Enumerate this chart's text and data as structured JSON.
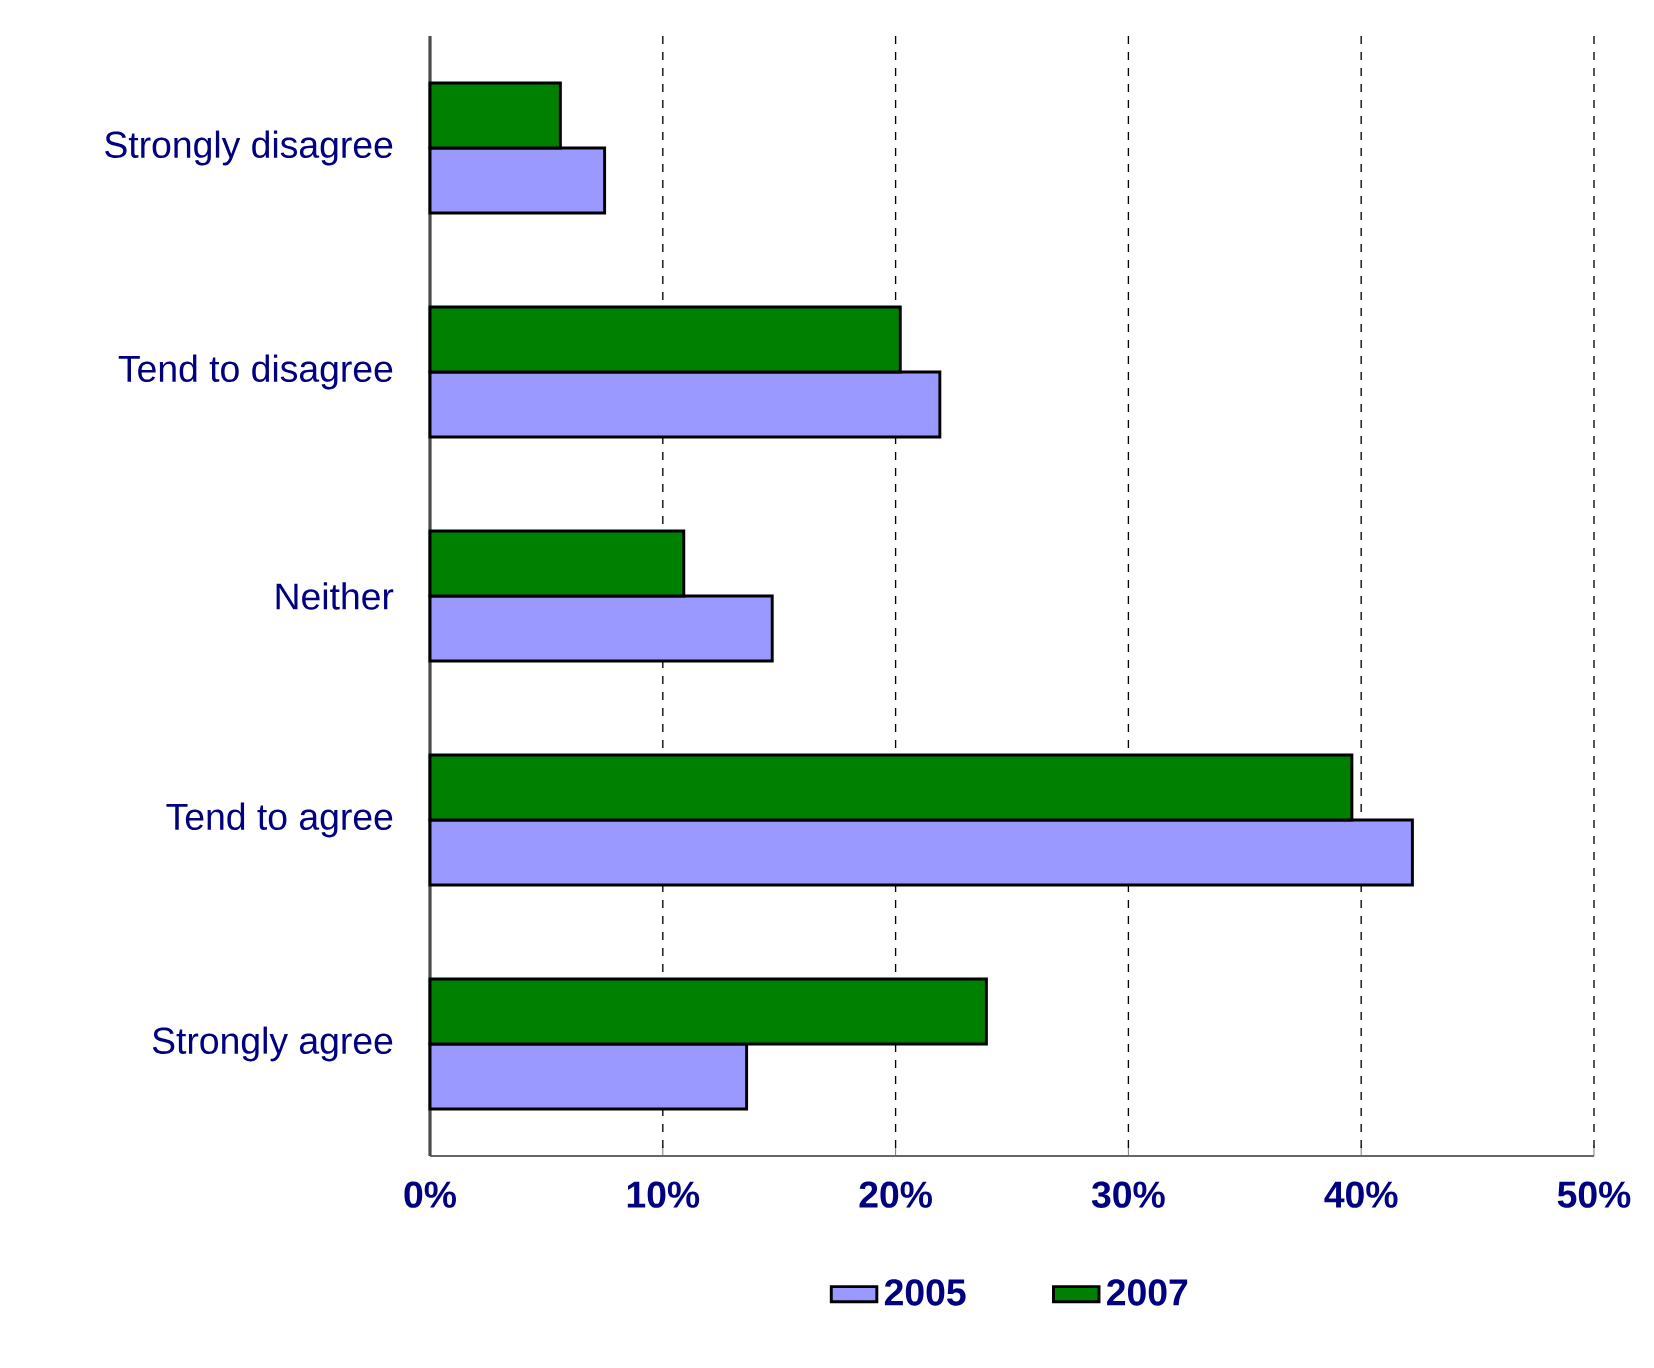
{
  "chart_data": {
    "type": "bar",
    "orientation": "horizontal",
    "categories": [
      "Strongly disagree",
      "Tend to disagree",
      "Neither",
      "Tend to agree",
      "Strongly agree"
    ],
    "series": [
      {
        "name": "2005",
        "color": "#9999ff",
        "values": [
          7.5,
          21.9,
          14.7,
          42.2,
          13.6
        ]
      },
      {
        "name": "2007",
        "color": "#008000",
        "values": [
          5.6,
          20.2,
          10.9,
          39.6,
          23.9
        ]
      }
    ],
    "xlim": [
      0,
      50
    ],
    "xticks": [
      {
        "value": 0,
        "label": "0%"
      },
      {
        "value": 10,
        "label": "10%"
      },
      {
        "value": 20,
        "label": "20%"
      },
      {
        "value": 30,
        "label": "30%"
      },
      {
        "value": 40,
        "label": "40%"
      },
      {
        "value": 50,
        "label": "50%"
      }
    ],
    "grid": "x",
    "legend": "bottom"
  }
}
